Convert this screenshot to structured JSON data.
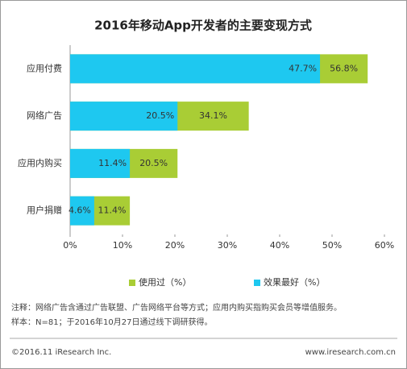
{
  "chart_data": {
    "type": "overlap_barh",
    "title": "2016年移动App开发者的主要变现方式",
    "categories": [
      "应用付费",
      "网络广告",
      "应用内购买",
      "用户捐赠"
    ],
    "series": [
      {
        "name": "使用过（%）",
        "color": "#a9cd35",
        "values": [
          56.8,
          34.1,
          20.5,
          11.4
        ],
        "value_labels": [
          "56.8%",
          "34.1%",
          "20.5%",
          "11.4%"
        ]
      },
      {
        "name": "效果最好（%）",
        "color": "#1ec8f0",
        "values": [
          47.7,
          20.5,
          11.4,
          4.6
        ],
        "value_labels": [
          "47.7%",
          "20.5%",
          "11.4%",
          "4.6%"
        ]
      }
    ],
    "xlim": [
      0,
      60
    ],
    "xticks": [
      {
        "value": 0,
        "label": "0%"
      },
      {
        "value": 10,
        "label": "10%"
      },
      {
        "value": 20,
        "label": "20%"
      },
      {
        "value": 30,
        "label": "30%"
      },
      {
        "value": 40,
        "label": "40%"
      },
      {
        "value": 50,
        "label": "50%"
      },
      {
        "value": 60,
        "label": "60%"
      }
    ],
    "grid": false
  },
  "notes": [
    "注释：网络广告含通过广告联盟、广告网络平台等方式；应用内购买指购买会员等增值服务。",
    "样本：N=81；于2016年10月27日通过线下调研获得。"
  ],
  "footer": {
    "left": "©2016.11 iResearch Inc.",
    "right": "www.iresearch.com.cn"
  }
}
